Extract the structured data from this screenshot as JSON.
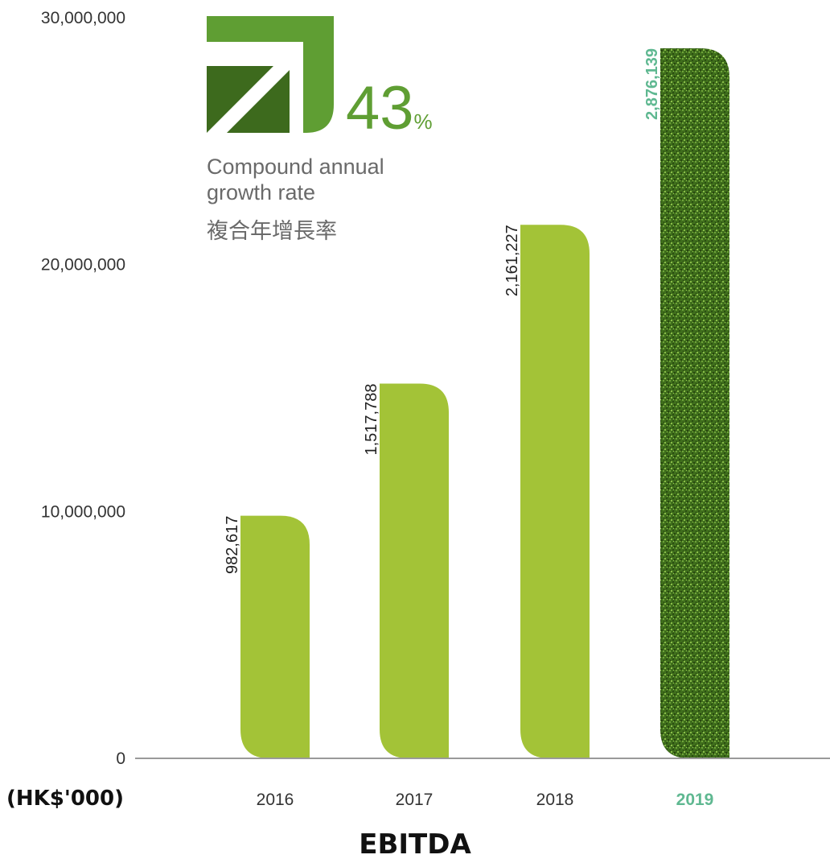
{
  "chart_data": {
    "type": "bar",
    "title": "EBITDA",
    "unit_label": "(HK$'000)",
    "categories": [
      "2016",
      "2017",
      "2018",
      "2019"
    ],
    "values": [
      982617,
      1517788,
      2161227,
      2876139
    ],
    "value_labels": [
      "982,617",
      "1,517,788",
      "2,161,227",
      "2,876,139"
    ],
    "ylim": [
      0,
      30000000
    ],
    "yticks": [
      0,
      10000000,
      20000000,
      30000000
    ],
    "ytick_labels": [
      "0",
      "10,000,000",
      "20,000,000",
      "30,000,000"
    ],
    "grid": false,
    "highlight_index": 3
  },
  "callout": {
    "value": "43",
    "unit": "%",
    "line1": "Compound annual",
    "line2": "growth rate",
    "line3": "複合年增長率"
  },
  "colors": {
    "bar": "#a3c337",
    "highlight_bar": "#3f6e1c",
    "highlight_text": "#5fb891",
    "icon_light": "#5f9e33",
    "icon_dark": "#3d6a1d",
    "axis": "#9a9a9a"
  }
}
